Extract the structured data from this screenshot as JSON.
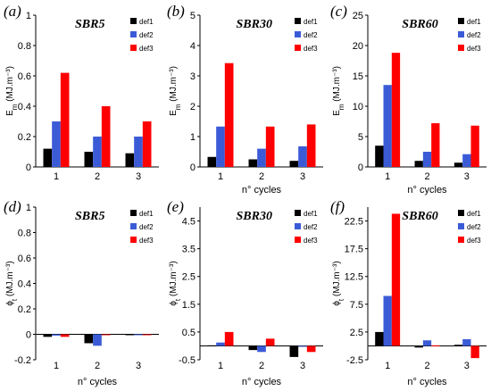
{
  "colors": {
    "def1": "#000000",
    "def2": "#3b5bd6",
    "def3": "#ff0000"
  },
  "chart_data": [
    {
      "panel": "(a)",
      "title": "SBR5",
      "type": "bar",
      "ylabel_main": "E",
      "ylabel_sub": "m",
      "ylabel_unit": " (MJ.m⁻³)",
      "xlabel": "",
      "ylim": [
        0,
        1
      ],
      "yticks": [
        "0",
        "0.2",
        "0.4",
        "0.6",
        "0.8",
        "1"
      ],
      "ytick_values": [
        0,
        0.2,
        0.4,
        0.6,
        0.8,
        1
      ],
      "categories": [
        "1",
        "2",
        "3"
      ],
      "legend": [
        "def1",
        "def2",
        "def3"
      ],
      "series": [
        {
          "name": "def1",
          "values": [
            0.12,
            0.1,
            0.09
          ]
        },
        {
          "name": "def2",
          "values": [
            0.3,
            0.2,
            0.2
          ]
        },
        {
          "name": "def3",
          "values": [
            0.62,
            0.4,
            0.3
          ]
        }
      ]
    },
    {
      "panel": "(b)",
      "title": "SBR30",
      "type": "bar",
      "ylabel_main": "E",
      "ylabel_sub": "m",
      "ylabel_unit": " (MJ.m⁻³)",
      "xlabel": "n° cycles",
      "ylim": [
        0,
        5
      ],
      "yticks": [
        "0",
        "1",
        "2",
        "3",
        "4",
        "5"
      ],
      "ytick_values": [
        0,
        1,
        2,
        3,
        4,
        5
      ],
      "categories": [
        "1",
        "2",
        "3"
      ],
      "legend": [
        "def1",
        "def2",
        "def3"
      ],
      "series": [
        {
          "name": "def1",
          "values": [
            0.33,
            0.25,
            0.2
          ]
        },
        {
          "name": "def2",
          "values": [
            1.33,
            0.6,
            0.68
          ]
        },
        {
          "name": "def3",
          "values": [
            3.42,
            1.33,
            1.4
          ]
        }
      ]
    },
    {
      "panel": "(c)",
      "title": "SBR60",
      "type": "bar",
      "ylabel_main": "E",
      "ylabel_sub": "m",
      "ylabel_unit": " (MJ.m⁻³)",
      "xlabel": "n° cycles",
      "ylim": [
        0,
        25
      ],
      "yticks": [
        "0",
        "5",
        "10",
        "15",
        "20",
        "25"
      ],
      "ytick_values": [
        0,
        5,
        10,
        15,
        20,
        25
      ],
      "categories": [
        "1",
        "2",
        "3"
      ],
      "legend": [
        "def1",
        "def2",
        "def3"
      ],
      "series": [
        {
          "name": "def1",
          "values": [
            3.5,
            1.0,
            0.7
          ]
        },
        {
          "name": "def2",
          "values": [
            13.5,
            2.5,
            2.1
          ]
        },
        {
          "name": "def3",
          "values": [
            18.8,
            7.2,
            6.8
          ]
        }
      ]
    },
    {
      "panel": "(d)",
      "title": "SBR5",
      "type": "bar",
      "ylabel_main": "ϕ",
      "ylabel_sub": "t",
      "ylabel_unit": " (MJ.m⁻³)",
      "xlabel": "n° cycles",
      "ylim": [
        -0.2,
        1
      ],
      "yticks": [
        "-0.2",
        "0",
        "0.2",
        "0.4",
        "0.6",
        "0.8",
        "1"
      ],
      "ytick_values": [
        -0.2,
        0,
        0.2,
        0.4,
        0.6,
        0.8,
        1
      ],
      "categories": [
        "1",
        "2",
        "3"
      ],
      "legend": [
        "def1",
        "def2",
        "def3"
      ],
      "series": [
        {
          "name": "def1",
          "values": [
            -0.02,
            -0.07,
            -0.005
          ]
        },
        {
          "name": "def2",
          "values": [
            -0.01,
            -0.09,
            -0.005
          ]
        },
        {
          "name": "def3",
          "values": [
            -0.02,
            -0.005,
            -0.005
          ]
        }
      ]
    },
    {
      "panel": "(e)",
      "title": "SBR30",
      "type": "bar",
      "ylabel_main": "ϕ",
      "ylabel_sub": "t",
      "ylabel_unit": " (MJ.m⁻³)",
      "xlabel": "n° cycles",
      "ylim": [
        -0.5,
        5
      ],
      "yticks": [
        "-0.5",
        "0.5",
        "1.5",
        "2.5",
        "3.5",
        "4.5"
      ],
      "ytick_values": [
        -0.5,
        0.5,
        1.5,
        2.5,
        3.5,
        4.5
      ],
      "categories": [
        "1",
        "2",
        "3"
      ],
      "legend": [
        "def1",
        "def2",
        "def3"
      ],
      "series": [
        {
          "name": "def1",
          "values": [
            0.02,
            -0.15,
            -0.4
          ]
        },
        {
          "name": "def2",
          "values": [
            0.12,
            -0.22,
            -0.02
          ]
        },
        {
          "name": "def3",
          "values": [
            0.5,
            0.26,
            -0.22
          ]
        }
      ]
    },
    {
      "panel": "(f)",
      "title": "SBR60",
      "type": "bar",
      "ylabel_main": "ϕ",
      "ylabel_sub": "t",
      "ylabel_unit": " (MJ.m⁻³)",
      "xlabel": "n° cycles",
      "ylim": [
        -2.5,
        25
      ],
      "yticks": [
        "-2.5",
        "2.5",
        "7.5",
        "12.5",
        "17.5",
        "22.5"
      ],
      "ytick_values": [
        -2.5,
        2.5,
        7.5,
        12.5,
        17.5,
        22.5
      ],
      "categories": [
        "1",
        "2",
        "3"
      ],
      "legend": [
        "def1",
        "def2",
        "def3"
      ],
      "series": [
        {
          "name": "def1",
          "values": [
            2.5,
            -0.3,
            0.2
          ]
        },
        {
          "name": "def2",
          "values": [
            9.0,
            1.0,
            1.2
          ]
        },
        {
          "name": "def3",
          "values": [
            23.8,
            0.1,
            -2.2
          ]
        }
      ]
    }
  ]
}
